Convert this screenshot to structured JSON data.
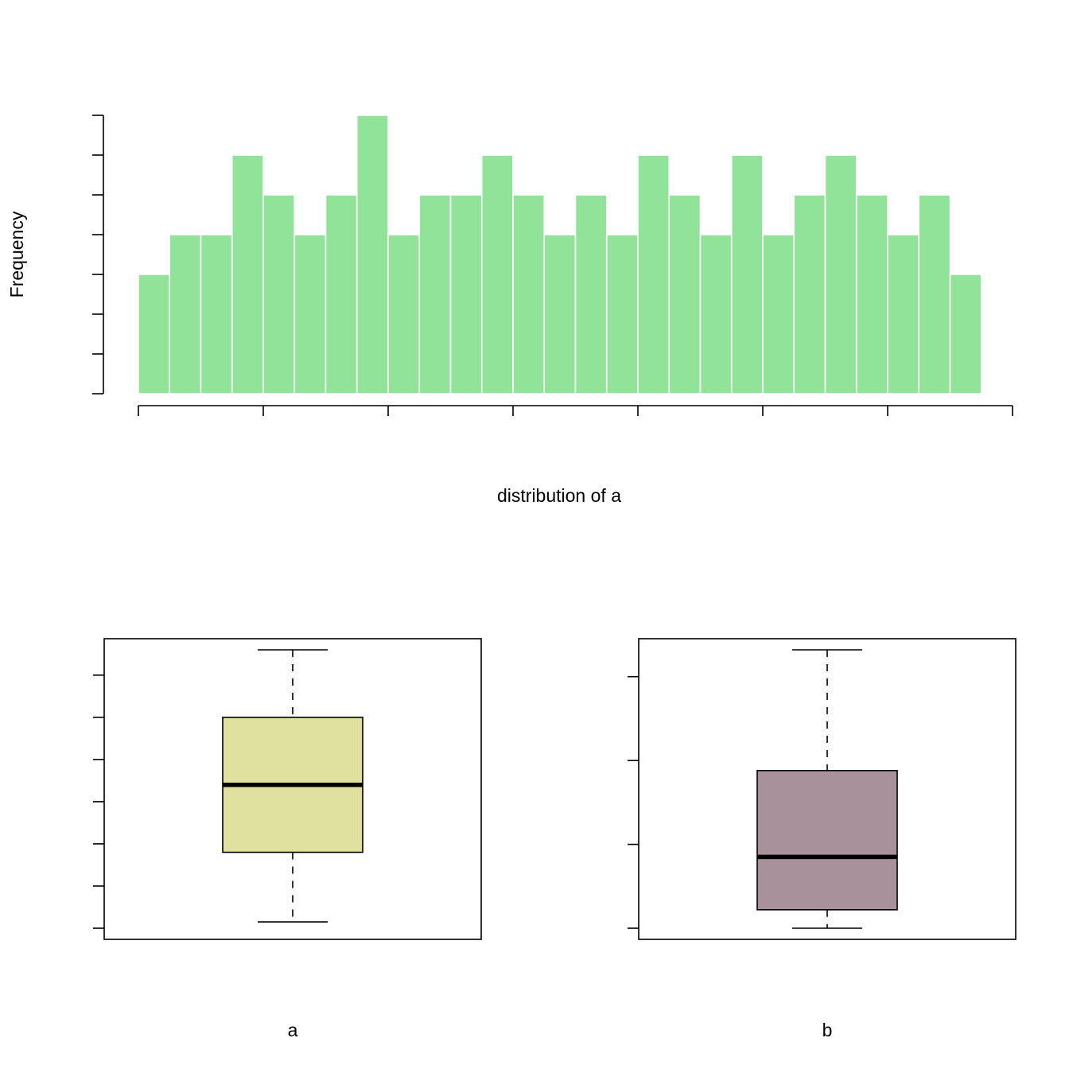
{
  "chart_data": [
    {
      "type": "histogram",
      "xlabel": "distribution of a",
      "ylabel": "Frequency",
      "bin_width": 5,
      "bins_start": 0,
      "values": [
        3,
        4,
        4,
        6,
        5,
        4,
        5,
        7,
        4,
        5,
        5,
        6,
        5,
        4,
        5,
        4,
        6,
        5,
        4,
        6,
        4,
        5,
        6,
        5,
        4,
        5,
        3
      ],
      "xlim": [
        0,
        140
      ],
      "ylim": [
        0,
        7
      ],
      "x_ticks": [
        "0",
        "20",
        "40",
        "60",
        "80",
        "100",
        "120",
        "140"
      ],
      "y_ticks": [
        "0",
        "1",
        "2",
        "3",
        "4",
        "5",
        "6",
        "7"
      ],
      "bar_color": "#92E39A",
      "border_color": "#FFFFFF"
    },
    {
      "type": "boxplot",
      "xlabel": "a",
      "ylim": [
        0,
        132
      ],
      "y_ticks": [
        "0",
        "20",
        "40",
        "60",
        "80",
        "100",
        "120"
      ],
      "whisker_low": 3,
      "q1": 36,
      "median": 68,
      "q3": 100,
      "whisker_high": 132,
      "fill_color": "#E0E19F"
    },
    {
      "type": "boxplot",
      "xlabel": "b",
      "ylim": [
        0,
        16600
      ],
      "y_ticks": [
        "0",
        "5000",
        "10000",
        "15000"
      ],
      "whisker_low": 0,
      "q1": 1100,
      "median": 4250,
      "q3": 9400,
      "whisker_high": 16600,
      "fill_color": "#A8919B"
    }
  ]
}
